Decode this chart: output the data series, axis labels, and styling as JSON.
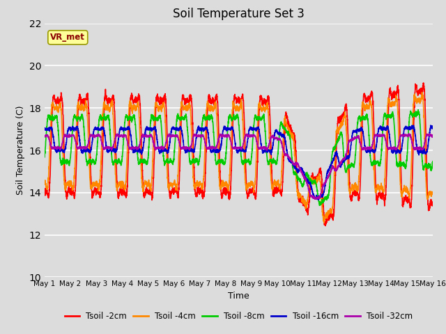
{
  "title": "Soil Temperature Set 3",
  "xlabel": "Time",
  "ylabel": "Soil Temperature (C)",
  "ylim": [
    10,
    22
  ],
  "xlim": [
    0,
    15
  ],
  "background_color": "#dcdcdc",
  "plot_bg_color": "#dcdcdc",
  "annotation_text": "VR_met",
  "annotation_color": "#8B0000",
  "annotation_bg": "#ffff99",
  "annotation_edge": "#999900",
  "x_tick_labels": [
    "May 1",
    "May 2",
    "May 3",
    "May 4",
    "May 5",
    "May 6",
    "May 7",
    "May 8",
    "May 9",
    "May 10",
    "May 11",
    "May 12",
    "May 13",
    "May 14",
    "May 15",
    "May 16"
  ],
  "series": {
    "Tsoil -2cm": {
      "color": "#ff0000",
      "lw": 1.2
    },
    "Tsoil -4cm": {
      "color": "#ff8800",
      "lw": 1.2
    },
    "Tsoil -8cm": {
      "color": "#00cc00",
      "lw": 1.2
    },
    "Tsoil -16cm": {
      "color": "#0000cc",
      "lw": 1.2
    },
    "Tsoil -32cm": {
      "color": "#aa00aa",
      "lw": 1.2
    }
  },
  "yticks": [
    10,
    12,
    14,
    16,
    18,
    20,
    22
  ],
  "grid_color": "#ffffff",
  "title_fontsize": 12,
  "axis_fontsize": 9,
  "tick_fontsize": 7.5
}
